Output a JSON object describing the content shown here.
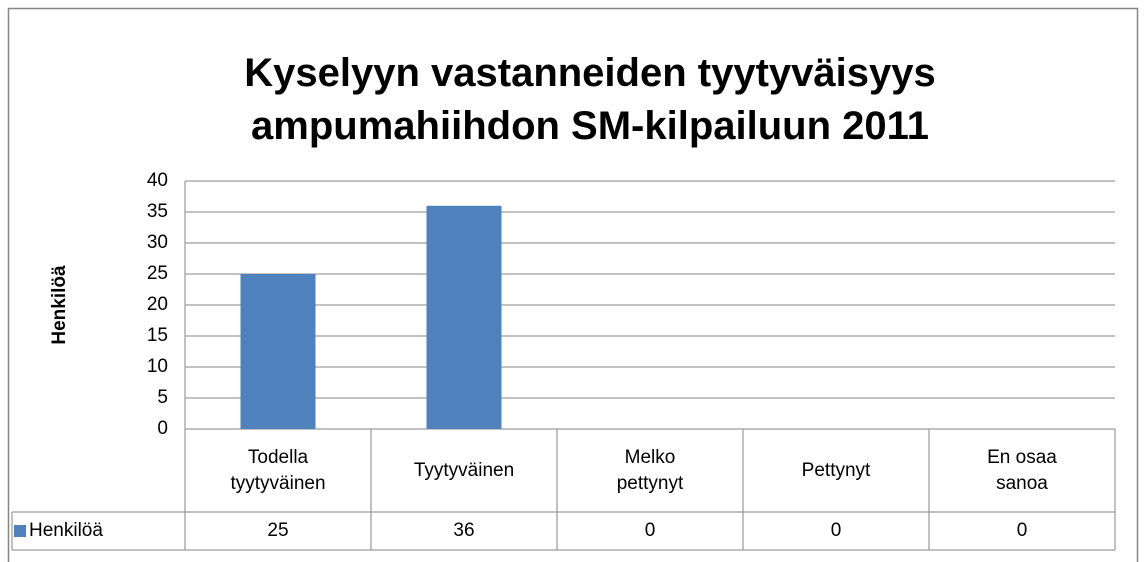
{
  "chart_data": {
    "type": "bar",
    "title": "Kyselyyn vastanneiden tyytyväisyys ampumahiihdon SM-kilpailuun 2011",
    "ylabel": "Henkilöä",
    "categories": [
      "Todella tyytyväinen",
      "Tyytyväinen",
      "Melko pettynyt",
      "Pettynyt",
      "En osaa sanoa"
    ],
    "series": [
      {
        "name": "Henkilöä",
        "color": "#4f81bd",
        "values": [
          25,
          36,
          0,
          0,
          0
        ]
      }
    ],
    "ylim": [
      0,
      40
    ],
    "yticks": [
      0,
      5,
      10,
      15,
      20,
      25,
      30,
      35,
      40
    ],
    "grid": true,
    "data_table": true
  }
}
